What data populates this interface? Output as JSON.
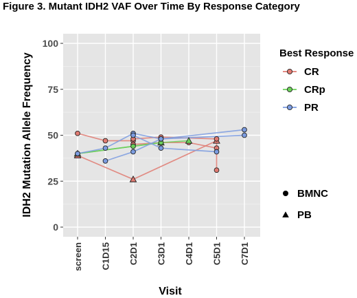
{
  "title": "Figure 3. Mutant IDH2 VAF Over Time By Response Category",
  "chart_data": {
    "type": "line",
    "xlabel": "Visit",
    "ylabel": "IDH2 Mutation Allele Frequency",
    "categories": [
      "screen",
      "C1D15",
      "C2D1",
      "C3D1",
      "C4D1",
      "C5D1",
      "C7D1"
    ],
    "ylim": [
      0,
      100
    ],
    "yticks": [
      0,
      25,
      50,
      75,
      100
    ],
    "grid": true,
    "legend": {
      "title": "Best Response",
      "placement": "right",
      "entries": [
        {
          "name": "CR",
          "color": "#e07b72"
        },
        {
          "name": "CRp",
          "color": "#6ccf5a"
        },
        {
          "name": "PR",
          "color": "#7c9ce0"
        }
      ],
      "shape_entries": [
        {
          "name": "BMNC",
          "shape": "circle"
        },
        {
          "name": "PB",
          "shape": "triangle"
        }
      ]
    },
    "series": [
      {
        "group": "CR",
        "shape": "circle",
        "points": [
          [
            "screen",
            51
          ],
          [
            "C1D15",
            47
          ],
          [
            "C2D1",
            47
          ]
        ]
      },
      {
        "group": "CR",
        "shape": "triangle",
        "points": [
          [
            "screen",
            39
          ],
          [
            "C2D1",
            26
          ],
          [
            "C5D1",
            47
          ]
        ]
      },
      {
        "group": "CR",
        "shape": "circle",
        "points": [
          [
            "C2D1",
            48
          ],
          [
            "C3D1",
            49
          ],
          [
            "C5D1",
            48
          ],
          [
            "C5D1",
            31
          ]
        ]
      },
      {
        "group": "CR",
        "shape": "circle",
        "points": [
          [
            "C2D1",
            45
          ],
          [
            "C3D1",
            46
          ],
          [
            "C4D1",
            46
          ],
          [
            "C5D1",
            43
          ]
        ]
      },
      {
        "group": "CRp",
        "shape": "triangle",
        "points": [
          [
            "screen",
            40
          ],
          [
            "C3D1",
            46
          ],
          [
            "C4D1",
            47
          ]
        ]
      },
      {
        "group": "CRp",
        "shape": "circle",
        "points": [
          [
            "screen",
            40
          ],
          [
            "C2D1",
            44
          ],
          [
            "C3D1",
            46
          ]
        ]
      },
      {
        "group": "PR",
        "shape": "circle",
        "points": [
          [
            "screen",
            40
          ],
          [
            "C1D15",
            43
          ],
          [
            "C2D1",
            51
          ],
          [
            "C3D1",
            48
          ],
          [
            "C7D1",
            53
          ]
        ]
      },
      {
        "group": "PR",
        "shape": "circle",
        "points": [
          [
            "C1D15",
            36
          ],
          [
            "C2D1",
            41
          ],
          [
            "C3D1",
            48
          ],
          [
            "C7D1",
            50
          ]
        ]
      },
      {
        "group": "PR",
        "shape": "circle",
        "points": [
          [
            "C2D1",
            50
          ],
          [
            "C3D1",
            43
          ],
          [
            "C5D1",
            41
          ]
        ]
      }
    ]
  }
}
